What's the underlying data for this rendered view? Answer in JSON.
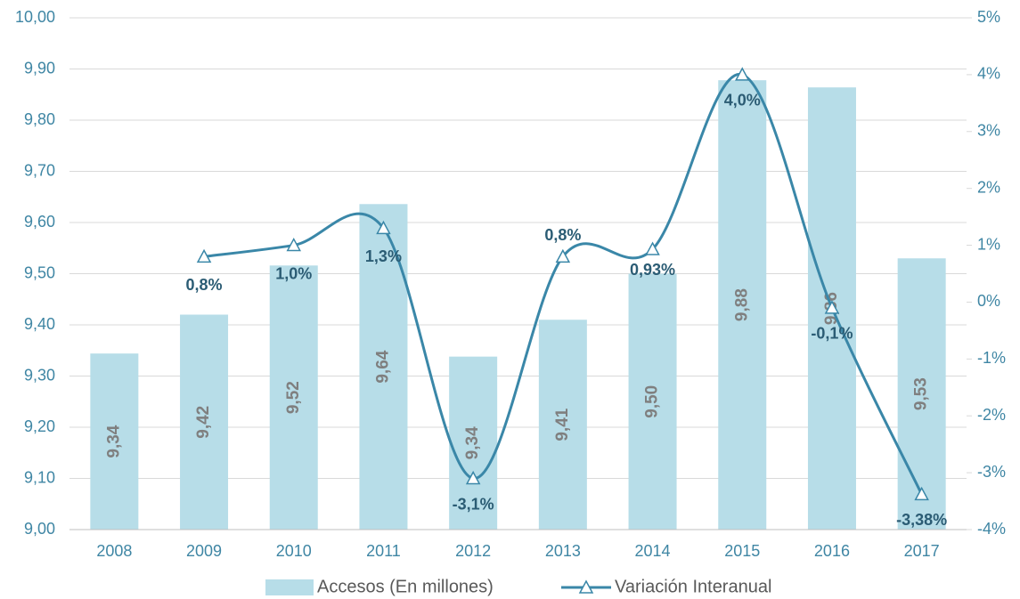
{
  "chart_data": {
    "type": "bar",
    "categories": [
      "2008",
      "2009",
      "2010",
      "2011",
      "2012",
      "2013",
      "2014",
      "2015",
      "2016",
      "2017"
    ],
    "series": [
      {
        "name": "Accesos (En millones)",
        "type": "bar",
        "color": "#b7dde8",
        "values": [
          9.344,
          9.42,
          9.516,
          9.636,
          9.338,
          9.41,
          9.5,
          9.878,
          9.864,
          9.53
        ],
        "value_labels": [
          "9,34",
          "9,42",
          "9,52",
          "9,64",
          "9,34",
          "9,41",
          "9,50",
          "9,88",
          "9,86",
          "9,53"
        ]
      },
      {
        "name": "Variación Interanual",
        "type": "line",
        "axis": "y2",
        "color": "#3a87a8",
        "smooth": true,
        "marker": "triangle",
        "values": [
          null,
          0.8,
          1.0,
          1.3,
          -3.1,
          0.8,
          0.93,
          4.0,
          -0.1,
          -3.38
        ],
        "value_labels": [
          null,
          "0,8%",
          "1,0%",
          "1,3%",
          "-3,1%",
          "0,8%",
          "0,93%",
          "4,0%",
          "-0,1%",
          "-3,38%"
        ]
      }
    ],
    "ylim": [
      9.0,
      10.0
    ],
    "yticks": [
      {
        "value": 9.0,
        "label": "9,00"
      },
      {
        "value": 9.1,
        "label": "9,10"
      },
      {
        "value": 9.2,
        "label": "9,20"
      },
      {
        "value": 9.3,
        "label": "9,30"
      },
      {
        "value": 9.4,
        "label": "9,40"
      },
      {
        "value": 9.5,
        "label": "9,50"
      },
      {
        "value": 9.6,
        "label": "9,60"
      },
      {
        "value": 9.7,
        "label": "9,70"
      },
      {
        "value": 9.8,
        "label": "9,80"
      },
      {
        "value": 9.9,
        "label": "9,90"
      },
      {
        "value": 10.0,
        "label": "10,00"
      }
    ],
    "y2lim": [
      -4,
      5
    ],
    "y2ticks": [
      {
        "value": -4,
        "label": "-4%"
      },
      {
        "value": -3,
        "label": "-3%"
      },
      {
        "value": -2,
        "label": "-2%"
      },
      {
        "value": -1,
        "label": "-1%"
      },
      {
        "value": 0,
        "label": "0%"
      },
      {
        "value": 1,
        "label": "1%"
      },
      {
        "value": 2,
        "label": "2%"
      },
      {
        "value": 3,
        "label": "3%"
      },
      {
        "value": 4,
        "label": "4%"
      },
      {
        "value": 5,
        "label": "5%"
      }
    ],
    "grid": true,
    "legend": "bottom"
  }
}
